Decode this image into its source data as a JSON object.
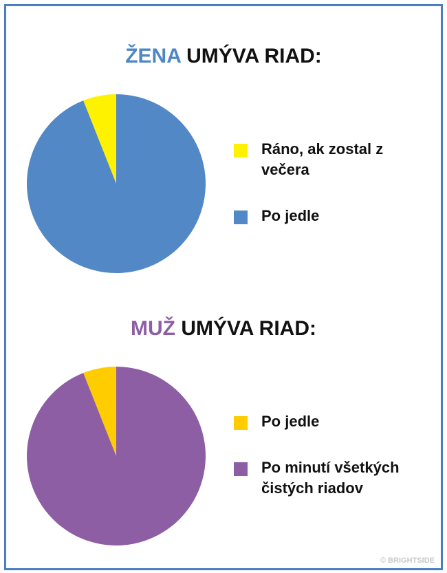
{
  "chart_data": [
    {
      "type": "pie",
      "title_highlight": "ŽENA",
      "title": "UMÝVA RIAD:",
      "title_highlight_color": "#4f86c6",
      "categories": [
        "Ráno, ak zostal z večera",
        "Po jedle"
      ],
      "values": [
        6,
        94
      ],
      "colors": [
        "#fff200",
        "#5288c5"
      ]
    },
    {
      "type": "pie",
      "title_highlight": "MUŽ",
      "title": "UMÝVA RIAD:",
      "title_highlight_color": "#8e5ea5",
      "categories": [
        "Po jedle",
        "Po minutí všetkých čistých riadov"
      ],
      "values": [
        6,
        94
      ],
      "colors": [
        "#ffcc00",
        "#8e5ea5"
      ]
    }
  ],
  "footer": "© BRIGHTSIDE"
}
